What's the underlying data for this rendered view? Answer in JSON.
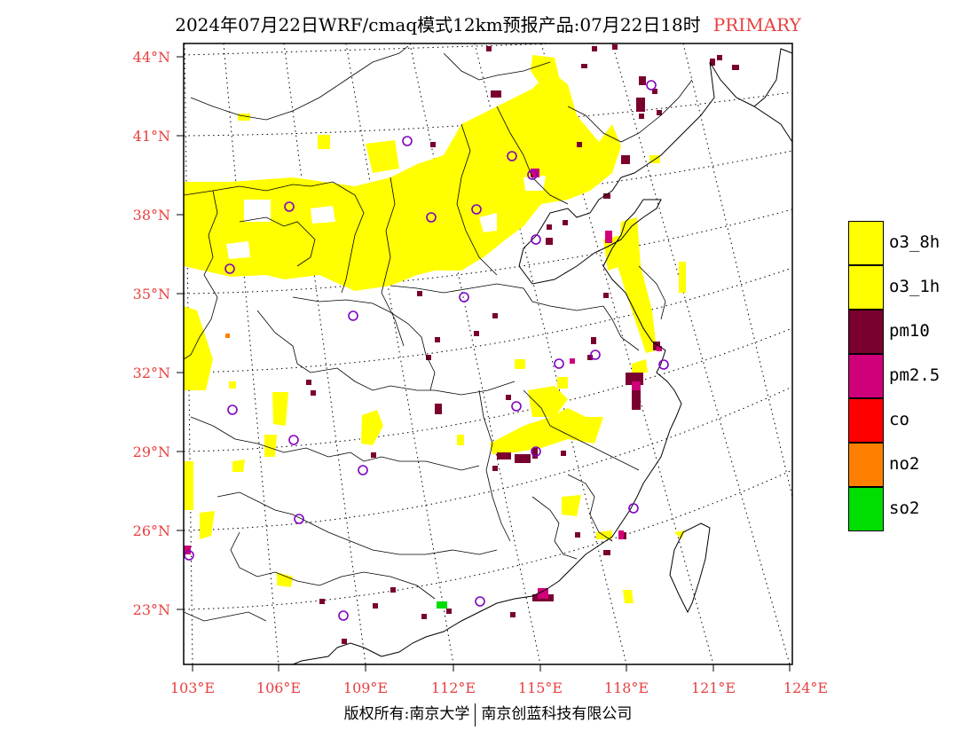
{
  "header": {
    "title": "2024年07月22日WRF/cmaq模式12km预报产品:07月22日18时",
    "mode_tag": "PRIMARY"
  },
  "axes": {
    "lat_labels": [
      "44°N",
      "41°N",
      "38°N",
      "35°N",
      "32°N",
      "29°N",
      "26°N",
      "23°N"
    ],
    "lon_labels": [
      "103°E",
      "106°E",
      "109°E",
      "112°E",
      "115°E",
      "118°E",
      "121°E",
      "124°E"
    ]
  },
  "legend": {
    "items": [
      {
        "label": "o3_8h",
        "color": "#ffff00"
      },
      {
        "label": "o3_1h",
        "color": "#ffff00"
      },
      {
        "label": "pm10",
        "color": "#7a0030"
      },
      {
        "label": "pm2.5",
        "color": "#d0007a"
      },
      {
        "label": "co",
        "color": "#ff0000"
      },
      {
        "label": "no2",
        "color": "#ff8000"
      },
      {
        "label": "so2",
        "color": "#00dd00"
      }
    ]
  },
  "footer": {
    "left": "版权所有:南京大学",
    "right": "南京创蓝科技有限公司"
  },
  "colors": {
    "axis_label": "#e84040",
    "o3": "#ffff00",
    "pm10": "#7a0030",
    "pm25": "#d0007a",
    "no2": "#ff8000",
    "so2": "#00dd00",
    "city_marker": "#8000c0"
  }
}
